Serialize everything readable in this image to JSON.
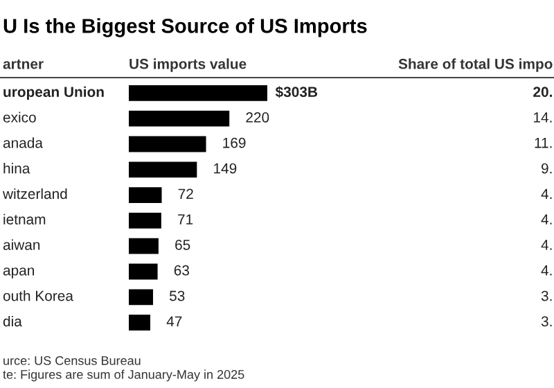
{
  "chart_data": {
    "type": "bar",
    "orientation": "horizontal",
    "title": "U Is the Biggest Source of US Imports",
    "ylabel": "artner",
    "xlabel": "US imports value",
    "categories": [
      "uropean Union",
      "exico",
      "anada",
      "hina",
      "witzerland",
      "ietnam",
      "aiwan",
      "apan",
      "outh Korea",
      "dia"
    ],
    "values": [
      303,
      220,
      169,
      149,
      72,
      71,
      65,
      63,
      53,
      47
    ],
    "value_labels": [
      "$303B",
      "220",
      "169",
      "149",
      "72",
      "71",
      "65",
      "63",
      "53",
      "47"
    ],
    "color": "#000000",
    "annotations": [
      "Share of total US impo",
      "20.",
      "14.",
      "11.",
      "9.",
      "4.",
      "4.",
      "4.",
      "4.",
      "3.",
      "3.",
      "urce: US Census Bureau",
      "te: Figures are sum of January-May in 2025"
    ],
    "legend": false
  }
}
